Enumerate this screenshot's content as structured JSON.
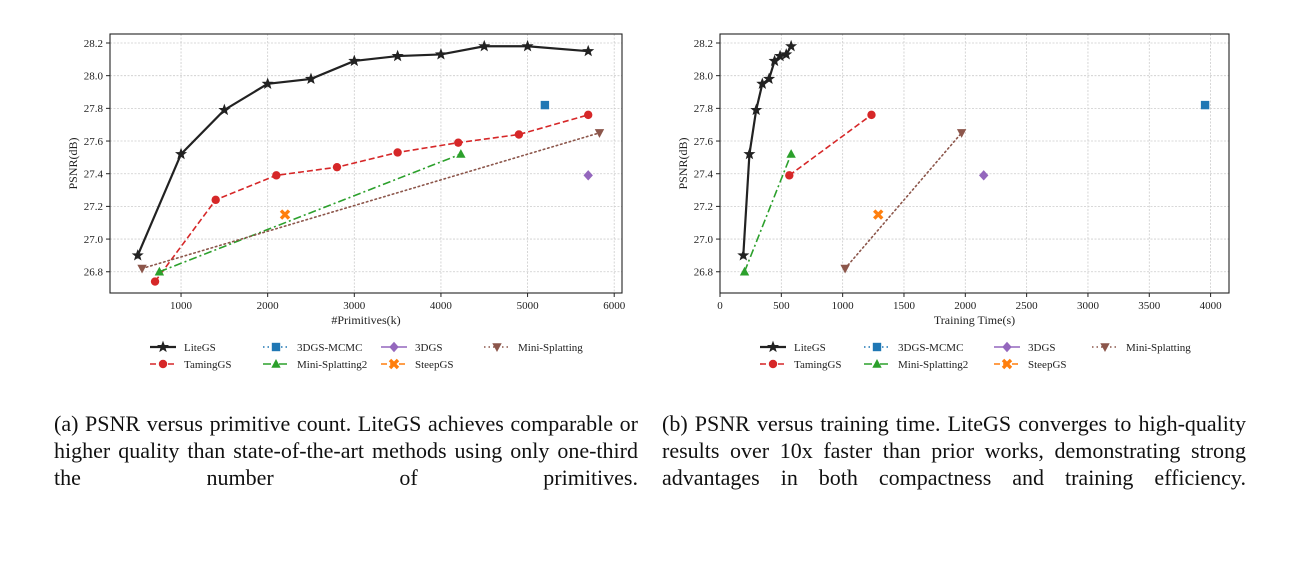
{
  "chart_data": [
    {
      "type": "line",
      "title": "",
      "xlabel": "#Primitives(k)",
      "ylabel": "PSNR(dB)",
      "xlim": [
        180,
        6090
      ],
      "ylim": [
        26.67,
        28.255
      ],
      "xticks": [
        1000,
        2000,
        3000,
        4000,
        5000,
        6000
      ],
      "yticks": [
        26.8,
        27.0,
        27.2,
        27.4,
        27.6,
        27.8,
        28.0,
        28.2
      ],
      "xtick_labels": [
        "1000",
        "2000",
        "3000",
        "4000",
        "5000",
        "6000"
      ],
      "ytick_labels": [
        "26.8",
        "27.0",
        "27.2",
        "27.4",
        "27.6",
        "27.8",
        "28.0",
        "28.2"
      ],
      "grid": true,
      "legend_position": "bottom",
      "series": [
        {
          "name": "LiteGS",
          "color": "#222222",
          "marker": "star",
          "linestyle": "solid",
          "x": [
            500,
            1000,
            1500,
            2000,
            2500,
            3000,
            3500,
            4000,
            4500,
            5000,
            5700
          ],
          "y": [
            26.9,
            27.52,
            27.79,
            27.95,
            27.98,
            28.09,
            28.12,
            28.13,
            28.18,
            28.18,
            28.15
          ]
        },
        {
          "name": "TamingGS",
          "color": "#d62728",
          "marker": "circle",
          "linestyle": "dashed",
          "x": [
            700,
            1400,
            2100,
            2800,
            3500,
            4200,
            4900,
            5700
          ],
          "y": [
            26.74,
            27.24,
            27.39,
            27.44,
            27.53,
            27.59,
            27.64,
            27.76
          ]
        },
        {
          "name": "3DGS-MCMC",
          "color": "#1f77b4",
          "marker": "square",
          "linestyle": "dotted",
          "x": [
            5200
          ],
          "y": [
            27.82
          ]
        },
        {
          "name": "Mini-Splatting2",
          "color": "#2ca02c",
          "marker": "triangle-up",
          "linestyle": "dashdot",
          "x": [
            750,
            4230
          ],
          "y": [
            26.8,
            27.52
          ]
        },
        {
          "name": "3DGS",
          "color": "#9467bd",
          "marker": "diamond",
          "linestyle": "solid",
          "x": [
            5700
          ],
          "y": [
            27.39
          ]
        },
        {
          "name": "SteepGS",
          "color": "#ff7f0e",
          "marker": "x-filled",
          "linestyle": "dashed",
          "x": [
            2200
          ],
          "y": [
            27.15
          ]
        },
        {
          "name": "Mini-Splatting",
          "color": "#8c564b",
          "marker": "triangle-down",
          "linestyle": "dotted",
          "x": [
            550,
            5830
          ],
          "y": [
            26.82,
            27.65
          ]
        }
      ]
    },
    {
      "type": "line",
      "title": "",
      "xlabel": "Training Time(s)",
      "ylabel": "PSNR(dB)",
      "xlim": [
        0,
        4150
      ],
      "ylim": [
        26.67,
        28.255
      ],
      "xticks": [
        0,
        500,
        1000,
        1500,
        2000,
        2500,
        3000,
        3500,
        4000
      ],
      "yticks": [
        26.8,
        27.0,
        27.2,
        27.4,
        27.6,
        27.8,
        28.0,
        28.2
      ],
      "xtick_labels": [
        "0",
        "500",
        "1000",
        "1500",
        "2000",
        "2500",
        "3000",
        "3500",
        "4000"
      ],
      "ytick_labels": [
        "26.8",
        "27.0",
        "27.2",
        "27.4",
        "27.6",
        "27.8",
        "28.0",
        "28.2"
      ],
      "grid": true,
      "legend_position": "bottom",
      "series": [
        {
          "name": "LiteGS",
          "color": "#222222",
          "marker": "star",
          "linestyle": "solid",
          "x": [
            190,
            240,
            295,
            345,
            400,
            445,
            490,
            540,
            580
          ],
          "y": [
            26.9,
            27.52,
            27.79,
            27.95,
            27.98,
            28.09,
            28.12,
            28.13,
            28.18
          ]
        },
        {
          "name": "TamingGS",
          "color": "#d62728",
          "marker": "circle",
          "linestyle": "dashed",
          "x": [
            565,
            1235
          ],
          "y": [
            27.39,
            27.76
          ]
        },
        {
          "name": "3DGS-MCMC",
          "color": "#1f77b4",
          "marker": "square",
          "linestyle": "dotted",
          "x": [
            3955
          ],
          "y": [
            27.82
          ]
        },
        {
          "name": "Mini-Splatting2",
          "color": "#2ca02c",
          "marker": "triangle-up",
          "linestyle": "dashdot",
          "x": [
            200,
            580
          ],
          "y": [
            26.8,
            27.52
          ]
        },
        {
          "name": "3DGS",
          "color": "#9467bd",
          "marker": "diamond",
          "linestyle": "solid",
          "x": [
            2150
          ],
          "y": [
            27.39
          ]
        },
        {
          "name": "SteepGS",
          "color": "#ff7f0e",
          "marker": "x-filled",
          "linestyle": "dashed",
          "x": [
            1290
          ],
          "y": [
            27.15
          ]
        },
        {
          "name": "Mini-Splatting",
          "color": "#8c564b",
          "marker": "triangle-down",
          "linestyle": "dotted",
          "x": [
            1020,
            1970
          ],
          "y": [
            26.82,
            27.65
          ]
        }
      ]
    }
  ],
  "legend": {
    "rows": [
      [
        "LiteGS",
        "3DGS-MCMC",
        "3DGS",
        "Mini-Splatting"
      ],
      [
        "TamingGS",
        "Mini-Splatting2",
        "SteepGS"
      ]
    ]
  },
  "captions": {
    "a": "(a) PSNR versus primitive count.  LiteGS achieves comparable or higher quality than state-of-the-art methods using only one-third the number of primitives.",
    "b": "(b) PSNR versus training time.  LiteGS converges to high-quality results over 10x faster than prior works, demonstrating strong advantages in both compactness and training efficiency."
  }
}
